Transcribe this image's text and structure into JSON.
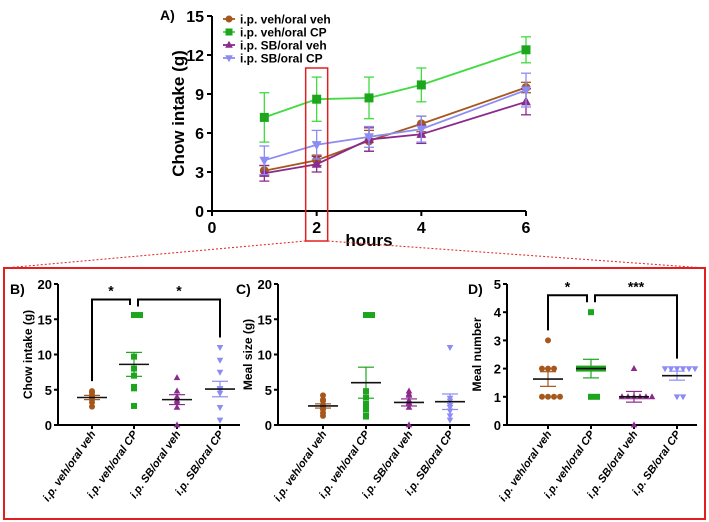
{
  "colors": {
    "veh_veh": "#a5571c",
    "veh_cp": "#1ea51e",
    "veh_cp_line": "#3fdc3f",
    "sb_veh": "#8b2a8d",
    "sb_cp": "#8c8cf2",
    "highlight": "#e02020"
  },
  "groups": [
    "i.p. veh/oral veh",
    "i.p. veh/oral CP",
    "i.p. SB/oral veh",
    "i.p. SB/oral CP"
  ],
  "chart_data": [
    {
      "panel": "A)",
      "type": "line",
      "xlabel": "hours",
      "ylabel": "Chow intake (g)",
      "xlim": [
        0,
        6
      ],
      "ylim": [
        0,
        15
      ],
      "xticks": [
        0,
        2,
        4,
        6
      ],
      "yticks": [
        0,
        3,
        6,
        9,
        12,
        15
      ],
      "legend": "top-left",
      "highlight_x": 2,
      "x": [
        1,
        2,
        3,
        4,
        6
      ],
      "series": [
        {
          "name": "i.p. veh/oral veh",
          "marker": "circle",
          "values": [
            3.1,
            3.9,
            5.4,
            6.7,
            9.5
          ],
          "error": [
            0.4,
            0.4,
            0.8,
            0.6,
            0.4
          ]
        },
        {
          "name": "i.p. veh/oral CP",
          "marker": "square",
          "values": [
            7.2,
            8.6,
            8.7,
            9.7,
            12.4
          ],
          "error": [
            1.9,
            1.7,
            1.6,
            1.3,
            1.0
          ]
        },
        {
          "name": "i.p. SB/oral veh",
          "marker": "triangle-up",
          "values": [
            2.9,
            3.6,
            5.5,
            5.9,
            8.4
          ],
          "error": [
            0.6,
            0.6,
            0.9,
            0.7,
            1.0
          ]
        },
        {
          "name": "i.p. SB/oral CP",
          "marker": "triangle-down",
          "values": [
            3.9,
            5.1,
            5.7,
            6.3,
            9.3
          ],
          "error": [
            1.1,
            1.1,
            0.8,
            1.0,
            1.3
          ]
        }
      ]
    },
    {
      "panel": "B)",
      "type": "scatter",
      "ylabel": "Chow intake (g)",
      "ylim": [
        0,
        20
      ],
      "yticks": [
        0,
        5,
        10,
        15,
        20
      ],
      "categories": [
        "i.p. veh/oral veh",
        "i.p. veh/oral CP",
        "i.p. SB/oral veh",
        "i.p. SB/oral CP"
      ],
      "points": [
        [
          2.6,
          3.2,
          3.6,
          3.9,
          4.0,
          4.2,
          4.6,
          4.8
        ],
        [
          2.7,
          5.2,
          5.4,
          7.0,
          8.0,
          9.7,
          15.6,
          15.6
        ],
        [
          0,
          2.5,
          3.2,
          3.5,
          3.9,
          4.0,
          4.8,
          6.7
        ],
        [
          0.7,
          2.5,
          4.5,
          5.0,
          5.2,
          7.5,
          9.2,
          11.0
        ]
      ],
      "mean": [
        3.9,
        8.6,
        3.6,
        5.1
      ],
      "sem": [
        0.3,
        1.7,
        0.7,
        1.1
      ],
      "significance": [
        {
          "from": 0,
          "to": 1,
          "label": "*",
          "y": 17.8
        },
        {
          "from": 1,
          "to": 3,
          "label": "*",
          "y": 17.8
        }
      ]
    },
    {
      "panel": "C)",
      "type": "scatter",
      "ylabel": "Meal size (g)",
      "ylim": [
        0,
        20
      ],
      "yticks": [
        0,
        5,
        10,
        15,
        20
      ],
      "categories": [
        "i.p. veh/oral veh",
        "i.p. veh/oral CP",
        "i.p. SB/oral veh",
        "i.p. SB/oral CP"
      ],
      "points": [
        [
          1.3,
          1.7,
          2.2,
          2.5,
          2.8,
          3.4,
          3.6,
          4.2
        ],
        [
          1.2,
          1.3,
          2.2,
          3.0,
          3.9,
          4.8,
          15.6,
          15.6
        ],
        [
          0,
          2.5,
          3.0,
          3.2,
          3.5,
          4.2,
          4.4,
          4.8
        ],
        [
          0.7,
          1.3,
          2.0,
          2.5,
          2.8,
          3.4,
          3.8,
          11.0
        ]
      ],
      "mean": [
        2.7,
        6.0,
        3.2,
        3.3
      ],
      "sem": [
        0.3,
        2.2,
        0.5,
        1.1
      ],
      "significance": []
    },
    {
      "panel": "D)",
      "type": "scatter",
      "ylabel": "Meal number",
      "ylim": [
        0,
        5
      ],
      "yticks": [
        0,
        1,
        2,
        3,
        4,
        5
      ],
      "categories": [
        "i.p. veh/oral veh",
        "i.p. veh/oral CP",
        "i.p. SB/oral veh",
        "i.p. SB/oral CP"
      ],
      "points": [
        [
          1,
          1,
          1,
          1,
          2,
          2,
          2,
          3
        ],
        [
          1,
          1,
          2,
          2,
          2,
          2,
          2,
          4
        ],
        [
          0,
          1,
          1,
          1,
          1,
          1,
          1,
          2
        ],
        [
          1,
          1,
          2,
          2,
          2,
          2,
          2,
          2
        ]
      ],
      "mean": [
        1.63,
        2.0,
        1.0,
        1.75
      ],
      "sem": [
        0.26,
        0.33,
        0.19,
        0.16
      ],
      "significance": [
        {
          "from": 0,
          "to": 1,
          "label": "*",
          "y": 4.6
        },
        {
          "from": 1,
          "to": 3,
          "label": "***",
          "y": 4.6
        }
      ]
    }
  ]
}
